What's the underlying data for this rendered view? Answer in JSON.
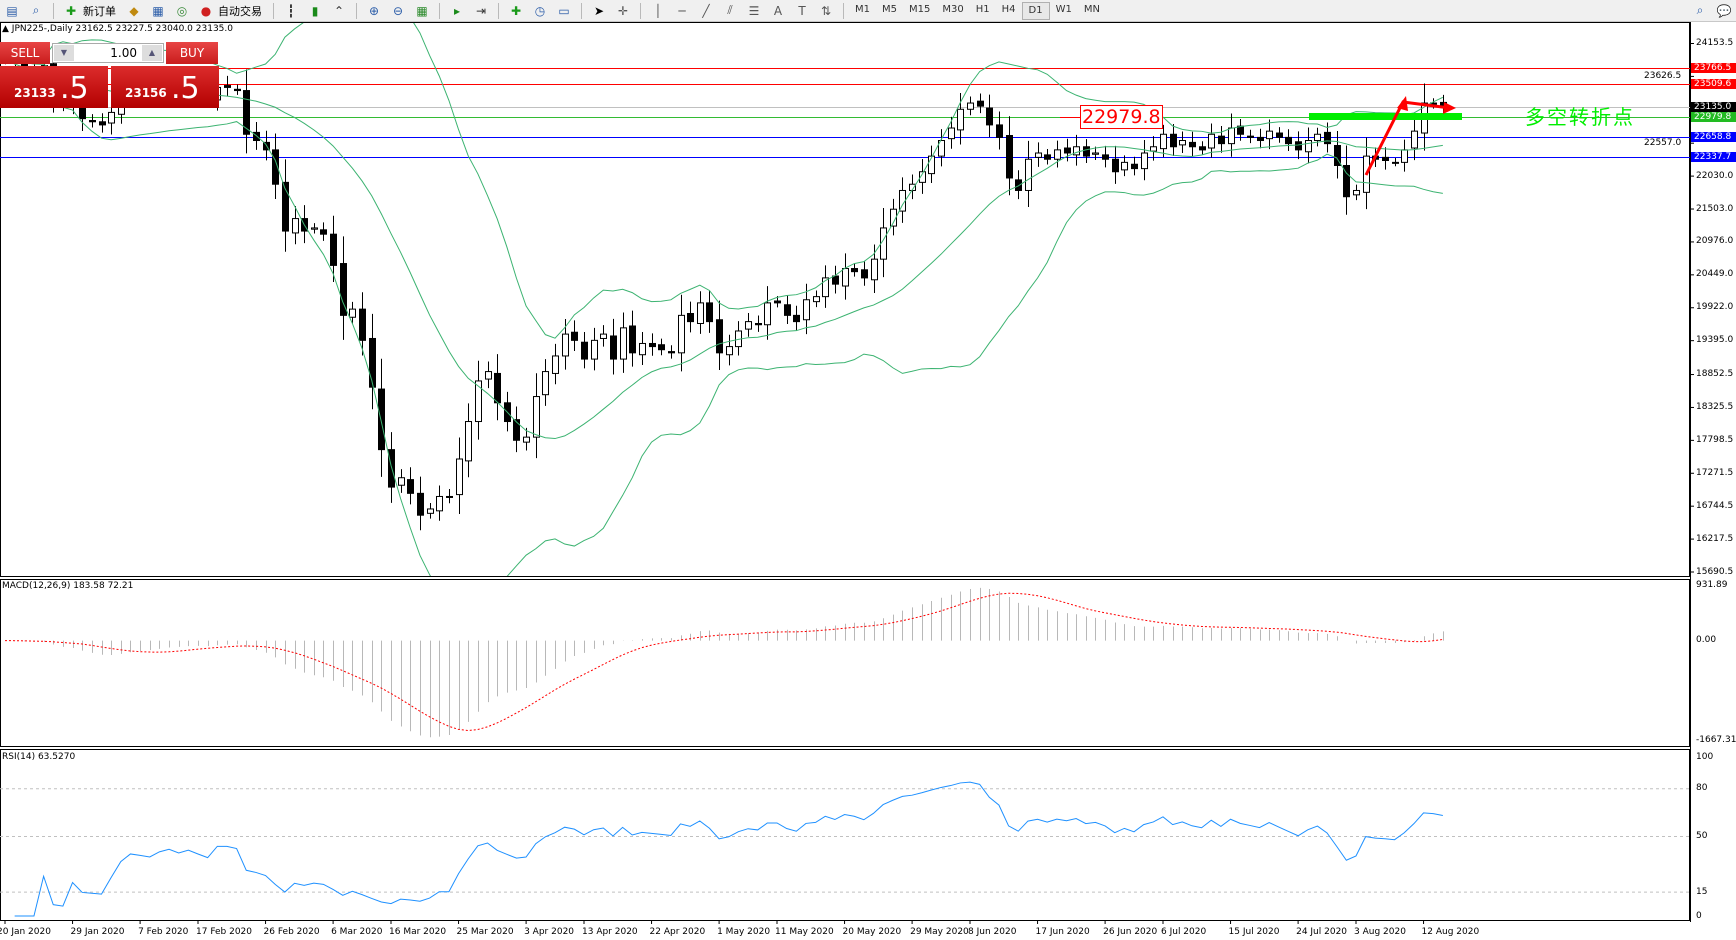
{
  "toolbar": {
    "new_order_label": "新订单",
    "auto_trading_label": "自动交易",
    "timeframes": [
      "M1",
      "M5",
      "M15",
      "M30",
      "H1",
      "H4",
      "D1",
      "W1",
      "MN"
    ],
    "active_timeframe": "D1"
  },
  "chart": {
    "header": "JPN225-,Daily  23162.5 23227.5 23040.0 23135.0",
    "annotation_label": "22979.8",
    "annotation_text": "多空转折点",
    "annotation_color": "#00ee00",
    "annotation_arrow_color": "#ff0000"
  },
  "trade_panel": {
    "sell_label": "SELL",
    "buy_label": "BUY",
    "lot": "1.00",
    "sell_price_main": "23133",
    "sell_price_frac": ".5",
    "buy_price_main": "23156",
    "buy_price_frac": ".5"
  },
  "price_axis": {
    "ticks": [
      "24153.5",
      "23626.5",
      "22557.0",
      "22030.0",
      "21503.0",
      "20976.0",
      "20449.0",
      "19922.0",
      "19395.0",
      "18852.5",
      "18325.5",
      "17798.5",
      "17271.5",
      "16744.5",
      "16217.5",
      "15690.5"
    ],
    "levels": [
      {
        "value": "23766.5",
        "color": "#ff0000"
      },
      {
        "value": "23509.6",
        "color": "#ff0000"
      },
      {
        "value": "23135.0",
        "color": "#000000",
        "line": "#c0c0c0"
      },
      {
        "value": "22979.8",
        "color": "#22bb22",
        "line": "#33bb33"
      },
      {
        "value": "22658.8",
        "color": "#0000ff"
      },
      {
        "value": "22337.7",
        "color": "#0000ff"
      }
    ]
  },
  "macd": {
    "title": "MACD(12,26,9) 183.58 72.21",
    "ticks": [
      "931.89",
      "0.00",
      "-1667.31"
    ]
  },
  "rsi": {
    "title": "RSI(14) 63.5270",
    "ticks": [
      "100",
      "80",
      "50",
      "15",
      "0"
    ]
  },
  "chart_data": {
    "type": "candlestick",
    "symbol": "JPN225-",
    "timeframe": "Daily",
    "ylim": [
      15690.5,
      24153.5
    ],
    "macd_range": [
      -1667.31,
      931.89
    ],
    "rsi_levels": [
      80,
      50,
      15
    ],
    "date_labels": [
      {
        "i": 0,
        "t": "20 Jan 2020"
      },
      {
        "i": 7,
        "t": "29 Jan 2020"
      },
      {
        "i": 14,
        "t": "7 Feb 2020"
      },
      {
        "i": 20,
        "t": "17 Feb 2020"
      },
      {
        "i": 27,
        "t": "26 Feb 2020"
      },
      {
        "i": 34,
        "t": "6 Mar 2020"
      },
      {
        "i": 40,
        "t": "16 Mar 2020"
      },
      {
        "i": 47,
        "t": "25 Mar 2020"
      },
      {
        "i": 54,
        "t": "3 Apr 2020"
      },
      {
        "i": 60,
        "t": "13 Apr 2020"
      },
      {
        "i": 67,
        "t": "22 Apr 2020"
      },
      {
        "i": 74,
        "t": "1 May 2020"
      },
      {
        "i": 80,
        "t": "11 May 2020"
      },
      {
        "i": 87,
        "t": "20 May 2020"
      },
      {
        "i": 94,
        "t": "29 May 2020"
      },
      {
        "i": 100,
        "t": "8 Jun 2020"
      },
      {
        "i": 107,
        "t": "17 Jun 2020"
      },
      {
        "i": 114,
        "t": "26 Jun 2020"
      },
      {
        "i": 120,
        "t": "6 Jul 2020"
      },
      {
        "i": 127,
        "t": "15 Jul 2020"
      },
      {
        "i": 134,
        "t": "24 Jul 2020"
      },
      {
        "i": 140,
        "t": "3 Aug 2020"
      },
      {
        "i": 147,
        "t": "12 Aug 2020"
      }
    ],
    "close": [
      23900,
      23850,
      23800,
      23750,
      23800,
      23300,
      23200,
      23350,
      22950,
      22900,
      22850,
      23050,
      23300,
      23450,
      23400,
      23350,
      23450,
      23500,
      23400,
      23450,
      23350,
      23250,
      23450,
      23450,
      23400,
      22700,
      22600,
      22450,
      21900,
      21150,
      21350,
      21150,
      21200,
      21100,
      20600,
      19800,
      19900,
      19400,
      18650,
      17650,
      17050,
      17200,
      16950,
      16600,
      16700,
      16900,
      16900,
      17500,
      18100,
      18750,
      18900,
      18400,
      18100,
      17800,
      17850,
      18500,
      18900,
      19150,
      19500,
      19400,
      19100,
      19400,
      19500,
      19100,
      19600,
      19200,
      19350,
      19300,
      19250,
      19200,
      19800,
      19700,
      20000,
      19700,
      19200,
      19300,
      19550,
      19700,
      19650,
      20000,
      20000,
      19800,
      19700,
      20050,
      20100,
      20400,
      20300,
      20550,
      20500,
      20400,
      20700,
      21200,
      21500,
      21800,
      21900,
      22100,
      22350,
      22600,
      22800,
      23100,
      23200,
      23150,
      22850,
      22650,
      22000,
      21800,
      22300,
      22400,
      22300,
      22450,
      22400,
      22500,
      22350,
      22400,
      22300,
      22100,
      22250,
      22150,
      22400,
      22500,
      22700,
      22500,
      22600,
      22500,
      22450,
      22700,
      22550,
      22800,
      22700,
      22650,
      22600,
      22750,
      22650,
      22550,
      22450,
      22600,
      22700,
      22550,
      22200,
      21700,
      21800,
      22350,
      22300,
      22280,
      22250,
      22450,
      22750,
      23200,
      23180,
      23135
    ]
  }
}
